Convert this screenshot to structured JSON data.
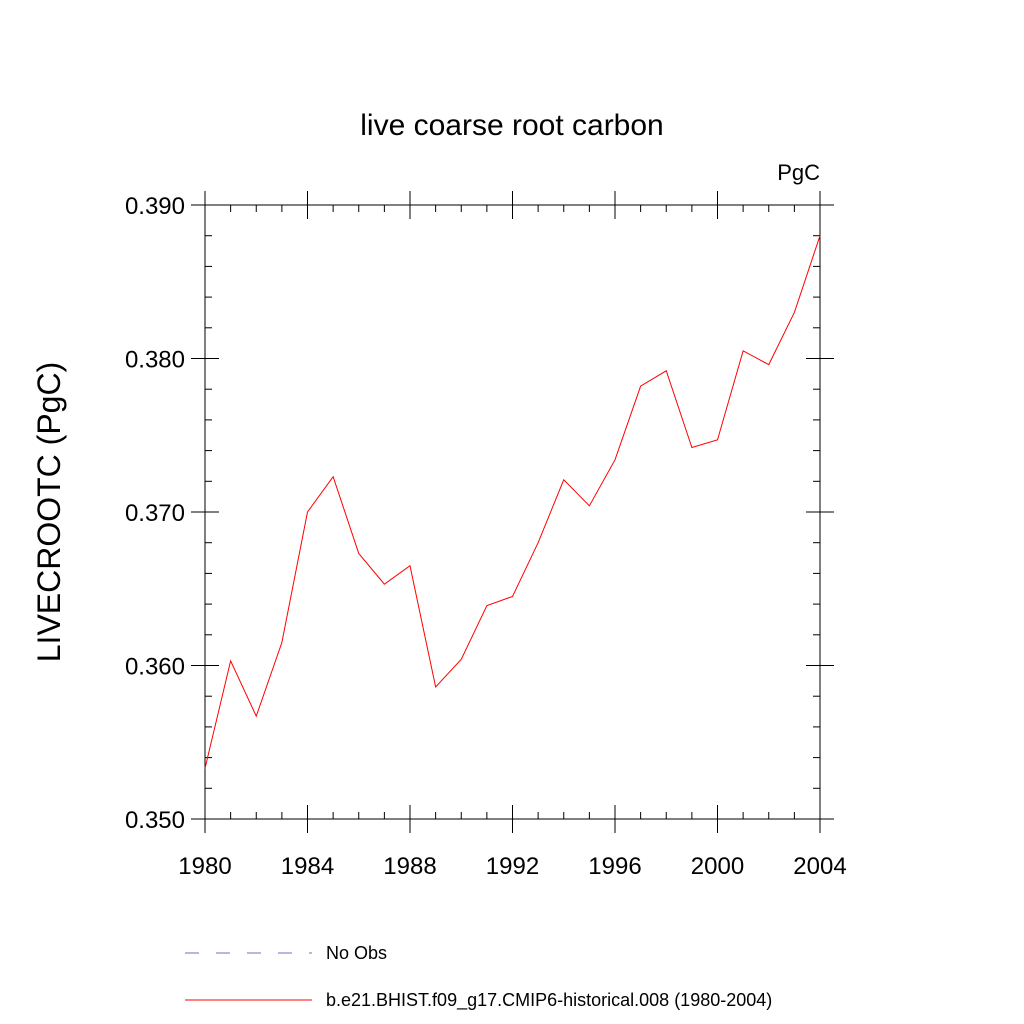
{
  "chart_data": {
    "type": "line",
    "title": "live coarse root carbon",
    "units": "PgC",
    "xlabel": "",
    "ylabel": "LIVECROOTC  (PgC)",
    "xlim": [
      1980,
      2004
    ],
    "ylim": [
      0.35,
      0.39
    ],
    "x_major_ticks": [
      1980,
      1984,
      1988,
      1992,
      1996,
      2000,
      2004
    ],
    "x_tick_labels": [
      "1980",
      "1984",
      "1988",
      "1992",
      "1996",
      "2000",
      "2004"
    ],
    "y_major_ticks": [
      0.35,
      0.36,
      0.37,
      0.38,
      0.39
    ],
    "y_tick_labels": [
      "0.350",
      "0.360",
      "0.370",
      "0.380",
      "0.390"
    ],
    "x_minor_step": 1,
    "y_minor_step": 0.002,
    "grid": false,
    "legend_position": "bottom",
    "series": [
      {
        "name": "b.e21.BHIST.f09_g17.CMIP6-historical.008 (1980-2004)",
        "color": "#ff0000",
        "style": "solid",
        "x": [
          1980,
          1981,
          1982,
          1983,
          1984,
          1985,
          1986,
          1987,
          1988,
          1989,
          1990,
          1991,
          1992,
          1993,
          1994,
          1995,
          1996,
          1997,
          1998,
          1999,
          2000,
          2001,
          2002,
          2003,
          2004
        ],
        "values": [
          0.3533,
          0.3603,
          0.3567,
          0.3615,
          0.37,
          0.3723,
          0.3673,
          0.3653,
          0.3665,
          0.3586,
          0.3604,
          0.3639,
          0.3645,
          0.368,
          0.3721,
          0.3704,
          0.3734,
          0.3782,
          0.3792,
          0.3742,
          0.3747,
          0.3805,
          0.3796,
          0.383,
          0.388
        ]
      }
    ],
    "legend": [
      {
        "label": "No Obs",
        "color": "#7b68c8",
        "style": "dashed"
      },
      {
        "label": "b.e21.BHIST.f09_g17.CMIP6-historical.008 (1980-2004)",
        "color": "#ff0000",
        "style": "solid"
      }
    ]
  }
}
